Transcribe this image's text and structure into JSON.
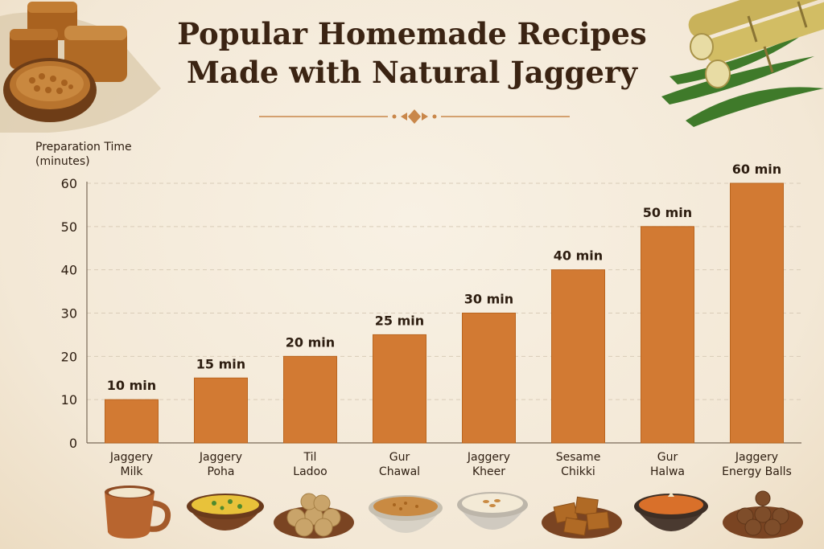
{
  "title": {
    "line1": "Popular Homemade Recipes",
    "line2": "Made with Natural Jaggery"
  },
  "colors": {
    "bar": "#d27a33",
    "bar_edge": "#b9651f",
    "text": "#2d1d10",
    "title": "#3b2413",
    "accent": "#c9874a",
    "grid": "#d9ccb8"
  },
  "chart_data": {
    "type": "bar",
    "ylabel_lines": [
      "Preparation Time",
      "(minutes)"
    ],
    "categories": [
      [
        "Jaggery",
        "Milk"
      ],
      [
        "Jaggery",
        "Poha"
      ],
      [
        "Til",
        "Ladoo"
      ],
      [
        "Gur",
        "Chawal"
      ],
      [
        "Jaggery",
        "Kheer"
      ],
      [
        "Sesame",
        "Chikki"
      ],
      [
        "Gur",
        "Halwa"
      ],
      [
        "Jaggery",
        "Energy Balls"
      ]
    ],
    "values": [
      10,
      15,
      20,
      25,
      30,
      40,
      50,
      60
    ],
    "value_labels": [
      "10 min",
      "15 min",
      "20 min",
      "25 min",
      "30 min",
      "40 min",
      "50 min",
      "60 min"
    ],
    "yticks": [
      0,
      10,
      20,
      30,
      40,
      50,
      60
    ],
    "ylim": [
      0,
      60
    ],
    "grid": true
  },
  "icons": [
    "jaggery-cubes-icon",
    "sugarcane-icon",
    "milk-cup-icon",
    "poha-bowl-icon",
    "ladoo-plate-icon",
    "rice-bowl-icon",
    "kheer-bowl-icon",
    "chikki-plate-icon",
    "halwa-bowl-icon",
    "energy-balls-plate-icon"
  ]
}
